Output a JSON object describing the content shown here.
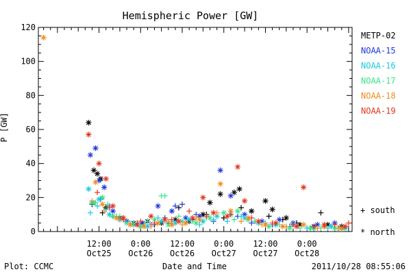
{
  "chart_data": {
    "type": "scatter",
    "title": "Hemispheric Power [GW]",
    "ylabel": "P [GW]",
    "xlabel": "Date and Time",
    "ylim": [
      0,
      120
    ],
    "yticks": [
      0,
      20,
      40,
      60,
      80,
      100,
      120
    ],
    "xlim": [
      "2011-10-24T18:30",
      "2011-10-28T13:00"
    ],
    "xticks": [
      {
        "time": "2011-10-25T12:00",
        "label_top": "12:00",
        "label_bottom": "Oct25"
      },
      {
        "time": "2011-10-26T00:00",
        "label_top": "0:00",
        "label_bottom": "Oct26"
      },
      {
        "time": "2011-10-26T12:00",
        "label_top": "12:00",
        "label_bottom": "Oct26"
      },
      {
        "time": "2011-10-27T00:00",
        "label_top": "0:00",
        "label_bottom": "Oct27"
      },
      {
        "time": "2011-10-27T12:00",
        "label_top": "12:00",
        "label_bottom": "Oct27"
      },
      {
        "time": "2011-10-28T00:00",
        "label_top": "0:00",
        "label_bottom": "Oct28"
      }
    ],
    "grid": false,
    "legend_position": "right",
    "series": [
      {
        "name": "METP-02",
        "color": "#000000",
        "north": [
          [
            "2011-10-25T09:00",
            64
          ],
          [
            "2011-10-25T10:30",
            36
          ],
          [
            "2011-10-25T11:30",
            34
          ],
          [
            "2011-10-25T12:30",
            31
          ],
          [
            "2011-10-25T14:00",
            14
          ],
          [
            "2011-10-25T18:00",
            8
          ],
          [
            "2011-10-25T22:00",
            5
          ],
          [
            "2011-10-26T02:00",
            6
          ],
          [
            "2011-10-26T06:00",
            5
          ],
          [
            "2011-10-26T10:00",
            7
          ],
          [
            "2011-10-26T14:00",
            6
          ],
          [
            "2011-10-26T18:00",
            10
          ],
          [
            "2011-10-26T20:00",
            17
          ],
          [
            "2011-10-26T23:00",
            22
          ],
          [
            "2011-10-27T03:00",
            23
          ],
          [
            "2011-10-27T04:30",
            25
          ],
          [
            "2011-10-27T08:00",
            12
          ],
          [
            "2011-10-27T12:00",
            18
          ],
          [
            "2011-10-27T14:00",
            13
          ],
          [
            "2011-10-27T18:00",
            8
          ],
          [
            "2011-10-27T22:00",
            4
          ],
          [
            "2011-10-28T02:00",
            3
          ],
          [
            "2011-10-28T06:00",
            4
          ],
          [
            "2011-10-28T10:00",
            3
          ]
        ],
        "south": [
          [
            "2011-10-25T10:00",
            16
          ],
          [
            "2011-10-25T13:00",
            11
          ],
          [
            "2011-10-25T16:00",
            9
          ],
          [
            "2011-10-25T20:00",
            6
          ],
          [
            "2011-10-26T00:00",
            3
          ],
          [
            "2011-10-26T04:00",
            4
          ],
          [
            "2011-10-26T08:00",
            5
          ],
          [
            "2011-10-26T11:00",
            14
          ],
          [
            "2011-10-26T15:00",
            7
          ],
          [
            "2011-10-26T19:00",
            10
          ],
          [
            "2011-10-27T00:00",
            8
          ],
          [
            "2011-10-27T05:00",
            14
          ],
          [
            "2011-10-27T09:00",
            6
          ],
          [
            "2011-10-27T13:00",
            9
          ],
          [
            "2011-10-27T17:00",
            7
          ],
          [
            "2011-10-27T21:00",
            5
          ],
          [
            "2011-10-28T01:00",
            2
          ],
          [
            "2011-10-28T04:00",
            11
          ],
          [
            "2011-10-28T09:00",
            2
          ]
        ]
      },
      {
        "name": "NOAA-15",
        "color": "#1f35d8",
        "north": [
          [
            "2011-10-25T09:30",
            45
          ],
          [
            "2011-10-25T11:00",
            49
          ],
          [
            "2011-10-25T12:00",
            30
          ],
          [
            "2011-10-25T13:30",
            26
          ],
          [
            "2011-10-25T16:00",
            12
          ],
          [
            "2011-10-25T20:00",
            6
          ],
          [
            "2011-10-26T00:30",
            5
          ],
          [
            "2011-10-26T05:00",
            15
          ],
          [
            "2011-10-26T09:00",
            12
          ],
          [
            "2011-10-26T13:00",
            8
          ],
          [
            "2011-10-26T17:00",
            9
          ],
          [
            "2011-10-26T23:00",
            36
          ],
          [
            "2011-10-27T02:00",
            21
          ],
          [
            "2011-10-27T06:00",
            10
          ],
          [
            "2011-10-27T11:00",
            6
          ],
          [
            "2011-10-27T16:00",
            7
          ],
          [
            "2011-10-27T20:00",
            5
          ],
          [
            "2011-10-28T03:00",
            4
          ],
          [
            "2011-10-28T08:00",
            5
          ]
        ],
        "south": [
          [
            "2011-10-25T12:30",
            19
          ],
          [
            "2011-10-25T15:00",
            15
          ],
          [
            "2011-10-25T19:00",
            8
          ],
          [
            "2011-10-25T23:00",
            5
          ],
          [
            "2011-10-26T03:00",
            4
          ],
          [
            "2011-10-26T07:00",
            8
          ],
          [
            "2011-10-26T10:00",
            15
          ],
          [
            "2011-10-26T12:00",
            16
          ],
          [
            "2011-10-26T16:00",
            10
          ],
          [
            "2011-10-26T21:00",
            6
          ],
          [
            "2011-10-27T04:00",
            9
          ],
          [
            "2011-10-27T08:00",
            5
          ],
          [
            "2011-10-27T14:00",
            4
          ],
          [
            "2011-10-27T19:00",
            3
          ],
          [
            "2011-10-28T05:00",
            3
          ]
        ]
      },
      {
        "name": "NOAA-16",
        "color": "#17c9e0",
        "north": [
          [
            "2011-10-25T09:00",
            25
          ],
          [
            "2011-10-25T10:00",
            17
          ],
          [
            "2011-10-25T12:00",
            19
          ],
          [
            "2011-10-25T15:00",
            10
          ],
          [
            "2011-10-25T18:00",
            7
          ],
          [
            "2011-10-25T22:00",
            4
          ],
          [
            "2011-10-26T02:00",
            3
          ],
          [
            "2011-10-26T06:00",
            6
          ],
          [
            "2011-10-26T10:00",
            5
          ],
          [
            "2011-10-26T14:00",
            7
          ],
          [
            "2011-10-26T18:00",
            6
          ],
          [
            "2011-10-26T22:00",
            9
          ],
          [
            "2011-10-27T02:00",
            10
          ],
          [
            "2011-10-27T06:00",
            8
          ],
          [
            "2011-10-27T10:00",
            5
          ],
          [
            "2011-10-27T15:00",
            4
          ],
          [
            "2011-10-27T20:00",
            4
          ],
          [
            "2011-10-28T02:00",
            2
          ],
          [
            "2011-10-28T07:00",
            3
          ],
          [
            "2011-10-28T11:00",
            2
          ]
        ],
        "south": [
          [
            "2011-10-25T09:30",
            11
          ],
          [
            "2011-10-25T11:30",
            15
          ],
          [
            "2011-10-25T14:00",
            13
          ],
          [
            "2011-10-25T17:00",
            9
          ],
          [
            "2011-10-25T21:00",
            5
          ],
          [
            "2011-10-26T01:00",
            4
          ],
          [
            "2011-10-26T05:00",
            8
          ],
          [
            "2011-10-26T09:00",
            6
          ],
          [
            "2011-10-26T13:00",
            5
          ],
          [
            "2011-10-26T17:00",
            4
          ],
          [
            "2011-10-26T21:00",
            7
          ],
          [
            "2011-10-27T01:00",
            6
          ],
          [
            "2011-10-27T05:00",
            9
          ],
          [
            "2011-10-27T12:00",
            5
          ],
          [
            "2011-10-27T18:00",
            3
          ],
          [
            "2011-10-28T00:00",
            2
          ],
          [
            "2011-10-28T06:00",
            2
          ]
        ]
      },
      {
        "name": "NOAA-17",
        "color": "#3ee28a",
        "north": [
          [
            "2011-10-25T10:30",
            17
          ],
          [
            "2011-10-25T13:00",
            20
          ],
          [
            "2011-10-25T16:00",
            9
          ],
          [
            "2011-10-25T20:00",
            5
          ],
          [
            "2011-10-26T00:00",
            3
          ],
          [
            "2011-10-26T04:00",
            7
          ],
          [
            "2011-10-26T08:00",
            4
          ],
          [
            "2011-10-26T12:00",
            6
          ],
          [
            "2011-10-26T16:00",
            5
          ],
          [
            "2011-10-26T20:00",
            8
          ],
          [
            "2011-10-27T00:00",
            11
          ],
          [
            "2011-10-27T04:00",
            12
          ],
          [
            "2011-10-27T07:00",
            7
          ],
          [
            "2011-10-27T13:00",
            3
          ],
          [
            "2011-10-27T19:00",
            2
          ],
          [
            "2011-10-28T01:00",
            2
          ],
          [
            "2011-10-28T08:00",
            2
          ]
        ],
        "south": [
          [
            "2011-10-25T11:00",
            17
          ],
          [
            "2011-10-25T14:30",
            16
          ],
          [
            "2011-10-25T18:00",
            9
          ],
          [
            "2011-10-25T22:00",
            5
          ],
          [
            "2011-10-26T02:00",
            6
          ],
          [
            "2011-10-26T06:00",
            21
          ],
          [
            "2011-10-26T07:00",
            21
          ],
          [
            "2011-10-26T11:00",
            9
          ],
          [
            "2011-10-26T15:00",
            6
          ],
          [
            "2011-10-26T19:00",
            8
          ],
          [
            "2011-10-27T03:00",
            7
          ],
          [
            "2011-10-27T09:00",
            6
          ],
          [
            "2011-10-27T16:00",
            4
          ],
          [
            "2011-10-27T22:00",
            2
          ],
          [
            "2011-10-28T04:00",
            2
          ],
          [
            "2011-10-28T10:00",
            1
          ]
        ]
      },
      {
        "name": "NOAA-18",
        "color": "#f08a1c",
        "north": [
          [
            "2011-10-24T20:00",
            114
          ],
          [
            "2011-10-25T11:00",
            29
          ],
          [
            "2011-10-25T13:00",
            16
          ],
          [
            "2011-10-25T17:00",
            8
          ],
          [
            "2011-10-25T21:00",
            4
          ],
          [
            "2011-10-26T01:00",
            3
          ],
          [
            "2011-10-26T05:00",
            5
          ],
          [
            "2011-10-26T09:00",
            4
          ],
          [
            "2011-10-26T13:00",
            5
          ],
          [
            "2011-10-26T17:00",
            7
          ],
          [
            "2011-10-26T23:00",
            28
          ],
          [
            "2011-10-27T02:00",
            12
          ],
          [
            "2011-10-27T07:00",
            8
          ],
          [
            "2011-10-27T12:00",
            4
          ],
          [
            "2011-10-27T17:00",
            3
          ],
          [
            "2011-10-27T23:00",
            4
          ],
          [
            "2011-10-28T05:00",
            3
          ],
          [
            "2011-10-28T10:00",
            2
          ]
        ],
        "south": [
          [
            "2011-10-25T10:00",
            18
          ],
          [
            "2011-10-25T13:30",
            12
          ],
          [
            "2011-10-25T18:00",
            7
          ],
          [
            "2011-10-25T23:00",
            4
          ],
          [
            "2011-10-26T03:00",
            3
          ],
          [
            "2011-10-26T08:00",
            6
          ],
          [
            "2011-10-26T12:00",
            4
          ],
          [
            "2011-10-26T16:00",
            8
          ],
          [
            "2011-10-26T22:00",
            11
          ],
          [
            "2011-10-27T05:00",
            6
          ],
          [
            "2011-10-27T11:00",
            4
          ],
          [
            "2011-10-27T18:00",
            3
          ],
          [
            "2011-10-28T03:00",
            2
          ],
          [
            "2011-10-28T09:00",
            2
          ]
        ]
      },
      {
        "name": "NOAA-19",
        "color": "#e0341c",
        "north": [
          [
            "2011-10-25T09:00",
            57
          ],
          [
            "2011-10-25T12:00",
            40
          ],
          [
            "2011-10-25T14:00",
            31
          ],
          [
            "2011-10-25T16:00",
            15
          ],
          [
            "2011-10-25T19:00",
            8
          ],
          [
            "2011-10-25T23:00",
            4
          ],
          [
            "2011-10-26T03:00",
            9
          ],
          [
            "2011-10-26T07:00",
            7
          ],
          [
            "2011-10-26T11:00",
            6
          ],
          [
            "2011-10-26T15:00",
            8
          ],
          [
            "2011-10-26T18:00",
            20
          ],
          [
            "2011-10-26T21:00",
            11
          ],
          [
            "2011-10-27T01:00",
            9
          ],
          [
            "2011-10-27T04:00",
            38
          ],
          [
            "2011-10-27T06:00",
            18
          ],
          [
            "2011-10-27T10:00",
            6
          ],
          [
            "2011-10-27T15:00",
            5
          ],
          [
            "2011-10-27T21:00",
            3
          ],
          [
            "2011-10-27T23:00",
            26
          ],
          [
            "2011-10-28T05:00",
            4
          ],
          [
            "2011-10-28T11:00",
            3
          ]
        ],
        "south": [
          [
            "2011-10-25T11:30",
            23
          ],
          [
            "2011-10-25T15:00",
            14
          ],
          [
            "2011-10-25T19:00",
            7
          ],
          [
            "2011-10-26T00:00",
            6
          ],
          [
            "2011-10-26T04:00",
            5
          ],
          [
            "2011-10-26T09:00",
            7
          ],
          [
            "2011-10-26T14:00",
            12
          ],
          [
            "2011-10-26T19:00",
            9
          ],
          [
            "2011-10-27T02:00",
            10
          ],
          [
            "2011-10-27T08:00",
            8
          ],
          [
            "2011-10-27T14:00",
            5
          ],
          [
            "2011-10-27T20:00",
            4
          ],
          [
            "2011-10-28T02:00",
            3
          ],
          [
            "2011-10-28T08:00",
            4
          ],
          [
            "2011-10-28T12:00",
            5
          ]
        ]
      }
    ],
    "marker_legend": [
      {
        "symbol": "+",
        "label": "south"
      },
      {
        "symbol": "*",
        "label": "north"
      }
    ]
  },
  "footer": {
    "left": "Plot: CCMC",
    "right": "2011/10/28 08:55:06"
  }
}
